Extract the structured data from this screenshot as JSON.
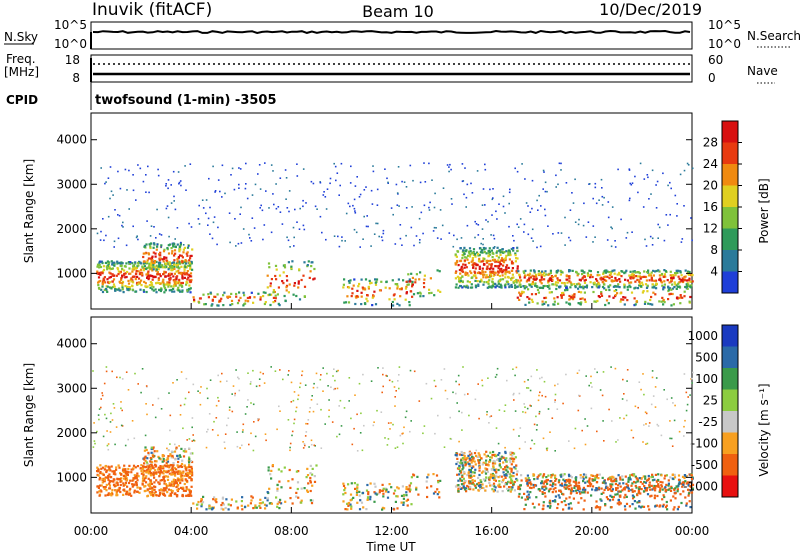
{
  "header": {
    "site": "Inuvik (fitACF)",
    "beam": "Beam 10",
    "date": "10/Dec/2019"
  },
  "top_panels": {
    "nsky_label": "N.Sky",
    "nsky_top": "10^5",
    "nsky_bottom": "10^0",
    "nsearch_top": "10^5",
    "nsearch_bottom": "10^0",
    "nsearch_label": "N.Search",
    "freq_label_1": "Freq.",
    "freq_label_2": "[MHz]",
    "freq_top": "18",
    "freq_bottom": "8",
    "nave_top": "60",
    "nave_bottom": "0",
    "nave_label": "Nave",
    "cpid_label": "CPID",
    "cpid_value": "twofsound (1-min) -3505"
  },
  "colors": {
    "power": [
      "#1f3fd8",
      "#2a7a9a",
      "#2f9a5a",
      "#7fc23a",
      "#e0d020",
      "#f08a10",
      "#e83a10",
      "#d81010"
    ],
    "velocity": [
      "#e81010",
      "#f06010",
      "#f8a020",
      "#c8c8c8",
      "#8ccc40",
      "#3a9a4a",
      "#2a6aa8",
      "#1a3ac0"
    ]
  },
  "chart_data": [
    {
      "type": "heatmap",
      "name": "power",
      "ylabel": "Slant Range [km]",
      "xlabel": "Time UT",
      "y_ticks": [
        "1000",
        "2000",
        "3000",
        "4000"
      ],
      "y_tick_values": [
        1000,
        2000,
        3000,
        4000
      ],
      "ylim": [
        200,
        4600
      ],
      "x_ticks": [
        "00:00",
        "04:00",
        "08:00",
        "12:00",
        "16:00",
        "20:00",
        "00:00"
      ],
      "x_tick_hours": [
        0,
        4,
        8,
        12,
        16,
        20,
        24
      ],
      "xlim": [
        0,
        24
      ],
      "colorbar_label": "Power [dB]",
      "colorbar_ticks": [
        "4",
        "8",
        "12",
        "16",
        "20",
        "24",
        "28"
      ],
      "colorbar_range": [
        0,
        32
      ]
    },
    {
      "type": "heatmap",
      "name": "velocity",
      "ylabel": "Slant Range [km]",
      "xlabel": "Time UT",
      "y_ticks": [
        "1000",
        "2000",
        "3000",
        "4000"
      ],
      "y_tick_values": [
        1000,
        2000,
        3000,
        4000
      ],
      "ylim": [
        200,
        4600
      ],
      "x_ticks": [
        "00:00",
        "04:00",
        "08:00",
        "12:00",
        "16:00",
        "20:00",
        "00:00"
      ],
      "x_tick_hours": [
        0,
        4,
        8,
        12,
        16,
        20,
        24
      ],
      "xlim": [
        0,
        24
      ],
      "colorbar_label": "Velocity [m s⁻¹]",
      "colorbar_ticks": [
        "1000",
        "500",
        "100",
        "25",
        "-25",
        "-100",
        "-500",
        "-1000"
      ]
    }
  ]
}
